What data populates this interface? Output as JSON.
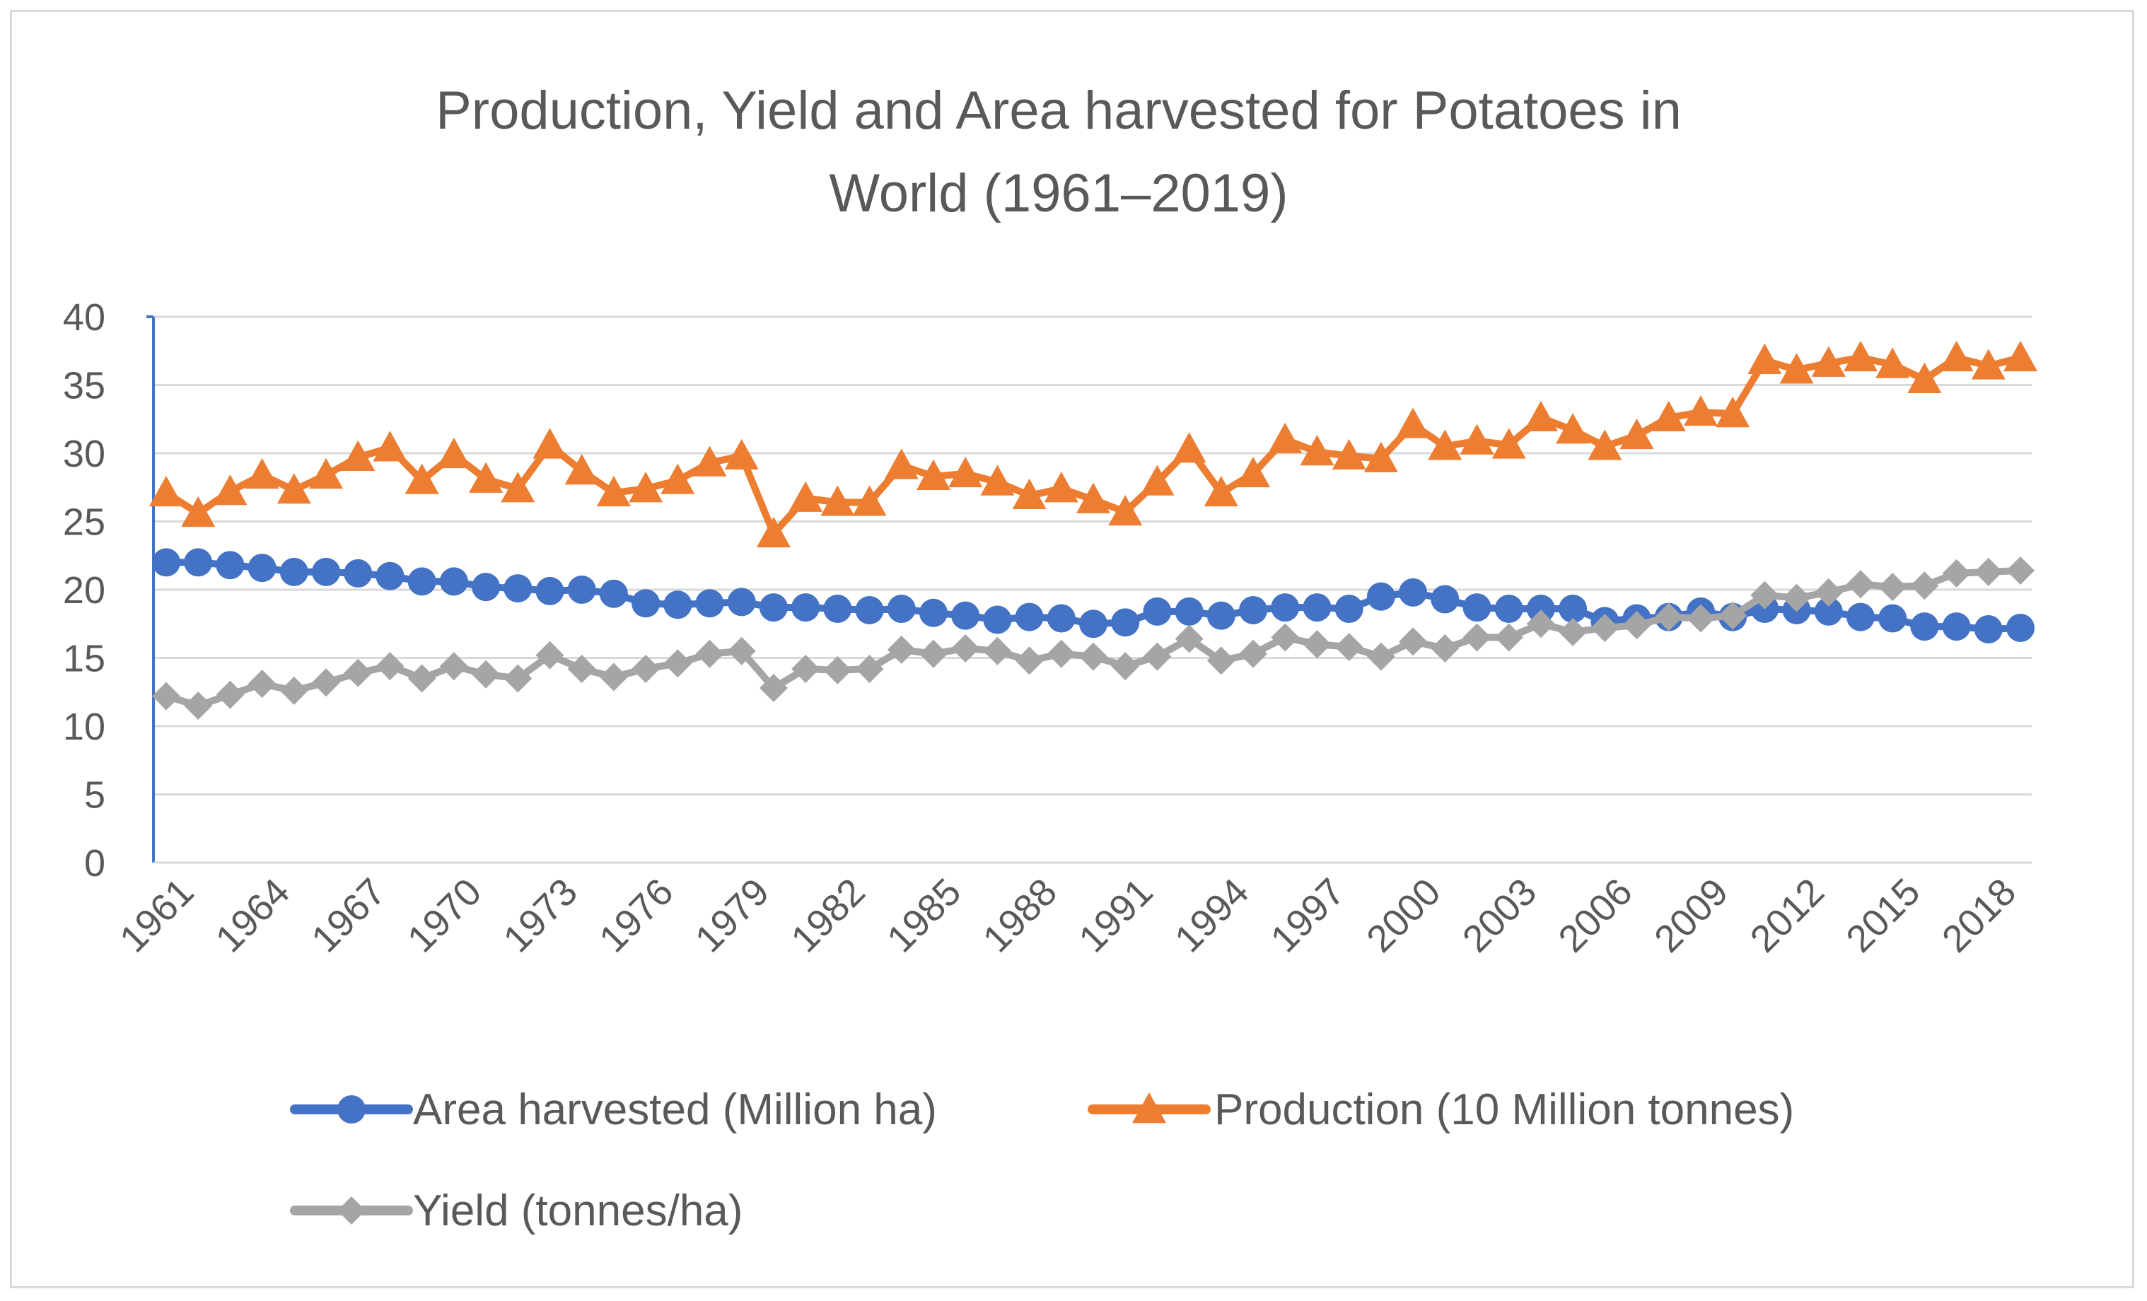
{
  "chart_data": {
    "type": "line",
    "title_line1": "Production, Yield and Area harvested for Potatoes in",
    "title_line2": "World (1961–2019)",
    "xlabel": "",
    "ylabel": "",
    "ylim": [
      0,
      40
    ],
    "yticks": [
      "0",
      "5",
      "10",
      "15",
      "20",
      "25",
      "30",
      "35",
      "40"
    ],
    "x": [
      1961,
      1962,
      1963,
      1964,
      1965,
      1966,
      1967,
      1968,
      1969,
      1970,
      1971,
      1972,
      1973,
      1974,
      1975,
      1976,
      1977,
      1978,
      1979,
      1980,
      1981,
      1982,
      1983,
      1984,
      1985,
      1986,
      1987,
      1988,
      1989,
      1990,
      1991,
      1992,
      1993,
      1994,
      1995,
      1996,
      1997,
      1998,
      1999,
      2000,
      2001,
      2002,
      2003,
      2004,
      2005,
      2006,
      2007,
      2008,
      2009,
      2010,
      2011,
      2012,
      2013,
      2014,
      2015,
      2016,
      2017,
      2018,
      2019
    ],
    "xtick_labels": [
      "1961",
      "1964",
      "1967",
      "1970",
      "1973",
      "1976",
      "1979",
      "1982",
      "1985",
      "1988",
      "1991",
      "1994",
      "1997",
      "2000",
      "2003",
      "2006",
      "2009",
      "2012",
      "2015",
      "2018"
    ],
    "grid": true,
    "legend_position": "bottom",
    "series": [
      {
        "name": "Area harvested (Million ha)",
        "color": "#4472c4",
        "marker": "circle",
        "values": [
          22.0,
          22.0,
          21.8,
          21.6,
          21.3,
          21.3,
          21.2,
          21.0,
          20.6,
          20.6,
          20.2,
          20.1,
          19.9,
          20.0,
          19.7,
          19.0,
          18.9,
          19.0,
          19.1,
          18.7,
          18.7,
          18.6,
          18.5,
          18.6,
          18.3,
          18.1,
          17.8,
          18.0,
          17.9,
          17.5,
          17.6,
          18.4,
          18.4,
          18.1,
          18.5,
          18.7,
          18.7,
          18.6,
          19.5,
          19.8,
          19.3,
          18.7,
          18.6,
          18.6,
          18.6,
          17.7,
          17.9,
          18.0,
          18.4,
          18.0,
          18.6,
          18.5,
          18.4,
          18.0,
          17.9,
          17.3,
          17.3,
          17.1,
          17.2
        ]
      },
      {
        "name": "Production (10 Million tonnes)",
        "color": "#ed7d31",
        "marker": "triangle",
        "values": [
          27.1,
          25.6,
          27.2,
          28.4,
          27.3,
          28.4,
          29.7,
          30.4,
          28.0,
          29.9,
          28.1,
          27.4,
          30.6,
          28.7,
          27.1,
          27.4,
          28.0,
          29.3,
          29.8,
          24.1,
          26.7,
          26.4,
          26.4,
          29.1,
          28.3,
          28.5,
          27.9,
          26.9,
          27.4,
          26.6,
          25.7,
          27.9,
          30.3,
          27.1,
          28.5,
          31.0,
          30.1,
          29.8,
          29.6,
          32.1,
          30.5,
          30.9,
          30.6,
          32.6,
          31.7,
          30.5,
          31.3,
          32.6,
          33.0,
          32.9,
          36.8,
          36.1,
          36.6,
          37.0,
          36.5,
          35.4,
          37.0,
          36.4,
          37.0
        ]
      },
      {
        "name": "Yield (tonnes/ha)",
        "color": "#a5a5a5",
        "marker": "diamond",
        "values": [
          12.2,
          11.5,
          12.3,
          13.1,
          12.6,
          13.2,
          13.9,
          14.4,
          13.5,
          14.4,
          13.8,
          13.5,
          15.2,
          14.2,
          13.6,
          14.2,
          14.6,
          15.3,
          15.5,
          12.8,
          14.2,
          14.1,
          14.2,
          15.6,
          15.3,
          15.7,
          15.5,
          14.8,
          15.3,
          15.1,
          14.4,
          15.1,
          16.4,
          14.8,
          15.3,
          16.5,
          16.0,
          15.8,
          15.1,
          16.2,
          15.7,
          16.5,
          16.5,
          17.5,
          16.9,
          17.2,
          17.4,
          18.0,
          17.9,
          18.1,
          19.6,
          19.4,
          19.8,
          20.4,
          20.2,
          20.3,
          21.2,
          21.3,
          21.4
        ]
      }
    ]
  }
}
